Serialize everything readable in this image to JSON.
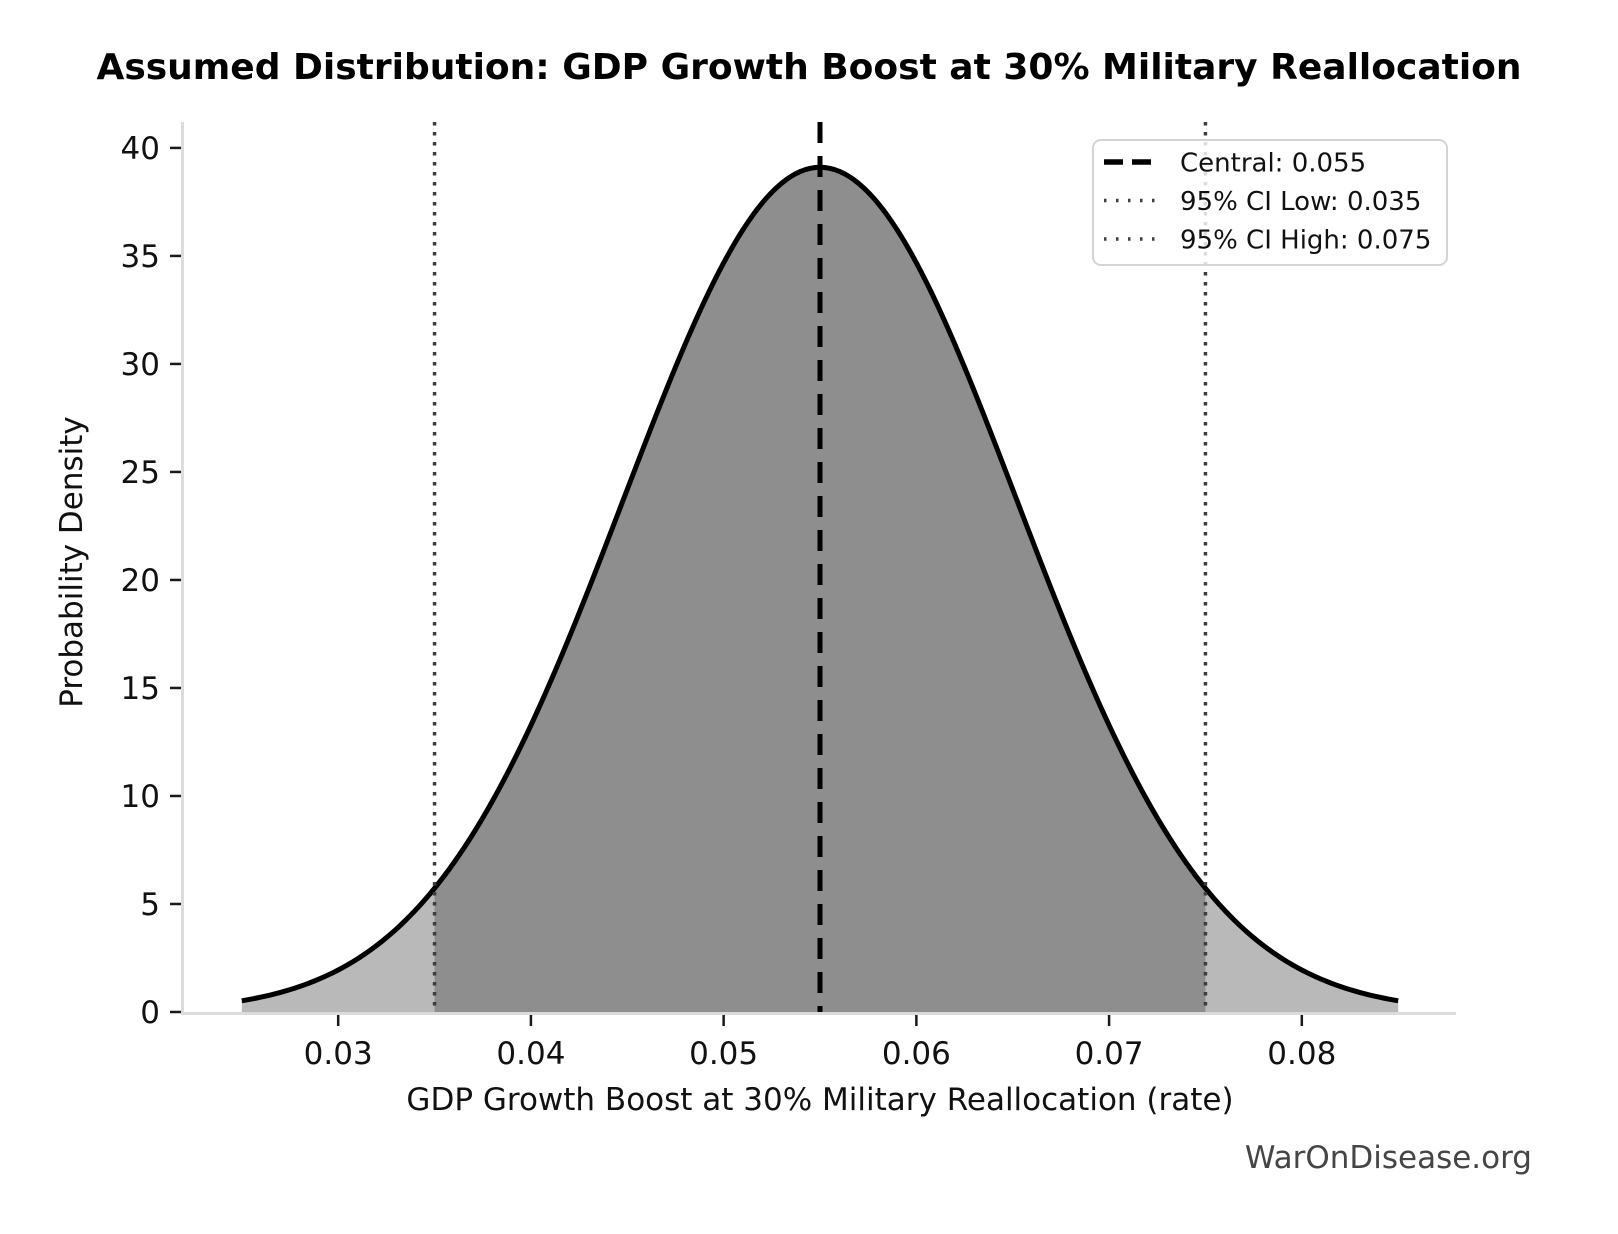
{
  "attribution": "WarOnDisease.org",
  "chart_data": {
    "type": "area",
    "title": "Assumed Distribution: GDP Growth Boost at 30% Military Reallocation",
    "xlabel": "GDP Growth Boost at 30% Military Reallocation (rate)",
    "ylabel": "Probability Density",
    "distribution": {
      "kind": "normal",
      "mean": 0.055,
      "sigma": 0.0102041,
      "peak_density": 39.104,
      "x_start": 0.025,
      "x_end": 0.085
    },
    "central": 0.055,
    "ci_low": 0.035,
    "ci_high": 0.075,
    "curve_points": {
      "x": [
        0.025,
        0.03,
        0.035,
        0.04,
        0.045,
        0.05,
        0.055,
        0.06,
        0.065,
        0.07,
        0.075,
        0.08,
        0.085
      ],
      "density": [
        0.52,
        1.94,
        5.73,
        13.27,
        24.19,
        34.68,
        39.1,
        34.68,
        24.19,
        13.27,
        5.73,
        1.94,
        0.52
      ]
    },
    "xlim": [
      0.022,
      0.088
    ],
    "ylim": [
      0,
      41.2
    ],
    "xticks": [
      0.03,
      0.04,
      0.05,
      0.06,
      0.07,
      0.08
    ],
    "xtick_labels": [
      "0.03",
      "0.04",
      "0.05",
      "0.06",
      "0.07",
      "0.08"
    ],
    "yticks": [
      0,
      5,
      10,
      15,
      20,
      25,
      30,
      35,
      40
    ],
    "ytick_labels": [
      "0",
      "5",
      "10",
      "15",
      "20",
      "25",
      "30",
      "35",
      "40"
    ],
    "grid": false,
    "legend_position": "upper right",
    "legend": [
      {
        "label": "Central: 0.055",
        "style": "dashed",
        "color": "#000000"
      },
      {
        "label": "95% CI Low: 0.035",
        "style": "dotted",
        "color": "#3d3d3d"
      },
      {
        "label": "95% CI High: 0.075",
        "style": "dotted",
        "color": "#3d3d3d"
      }
    ],
    "colors": {
      "curve": "#000000",
      "fill_tail": "#b9b9b9",
      "fill_ci": "#8e8e8e",
      "central_line": "#000000",
      "ci_line": "#3d3d3d",
      "spine": "#dcdcdc",
      "tick": "#1a1a1a",
      "tick_label": "#111111",
      "legend_border": "#d4d4d4",
      "legend_text": "#111111"
    }
  }
}
